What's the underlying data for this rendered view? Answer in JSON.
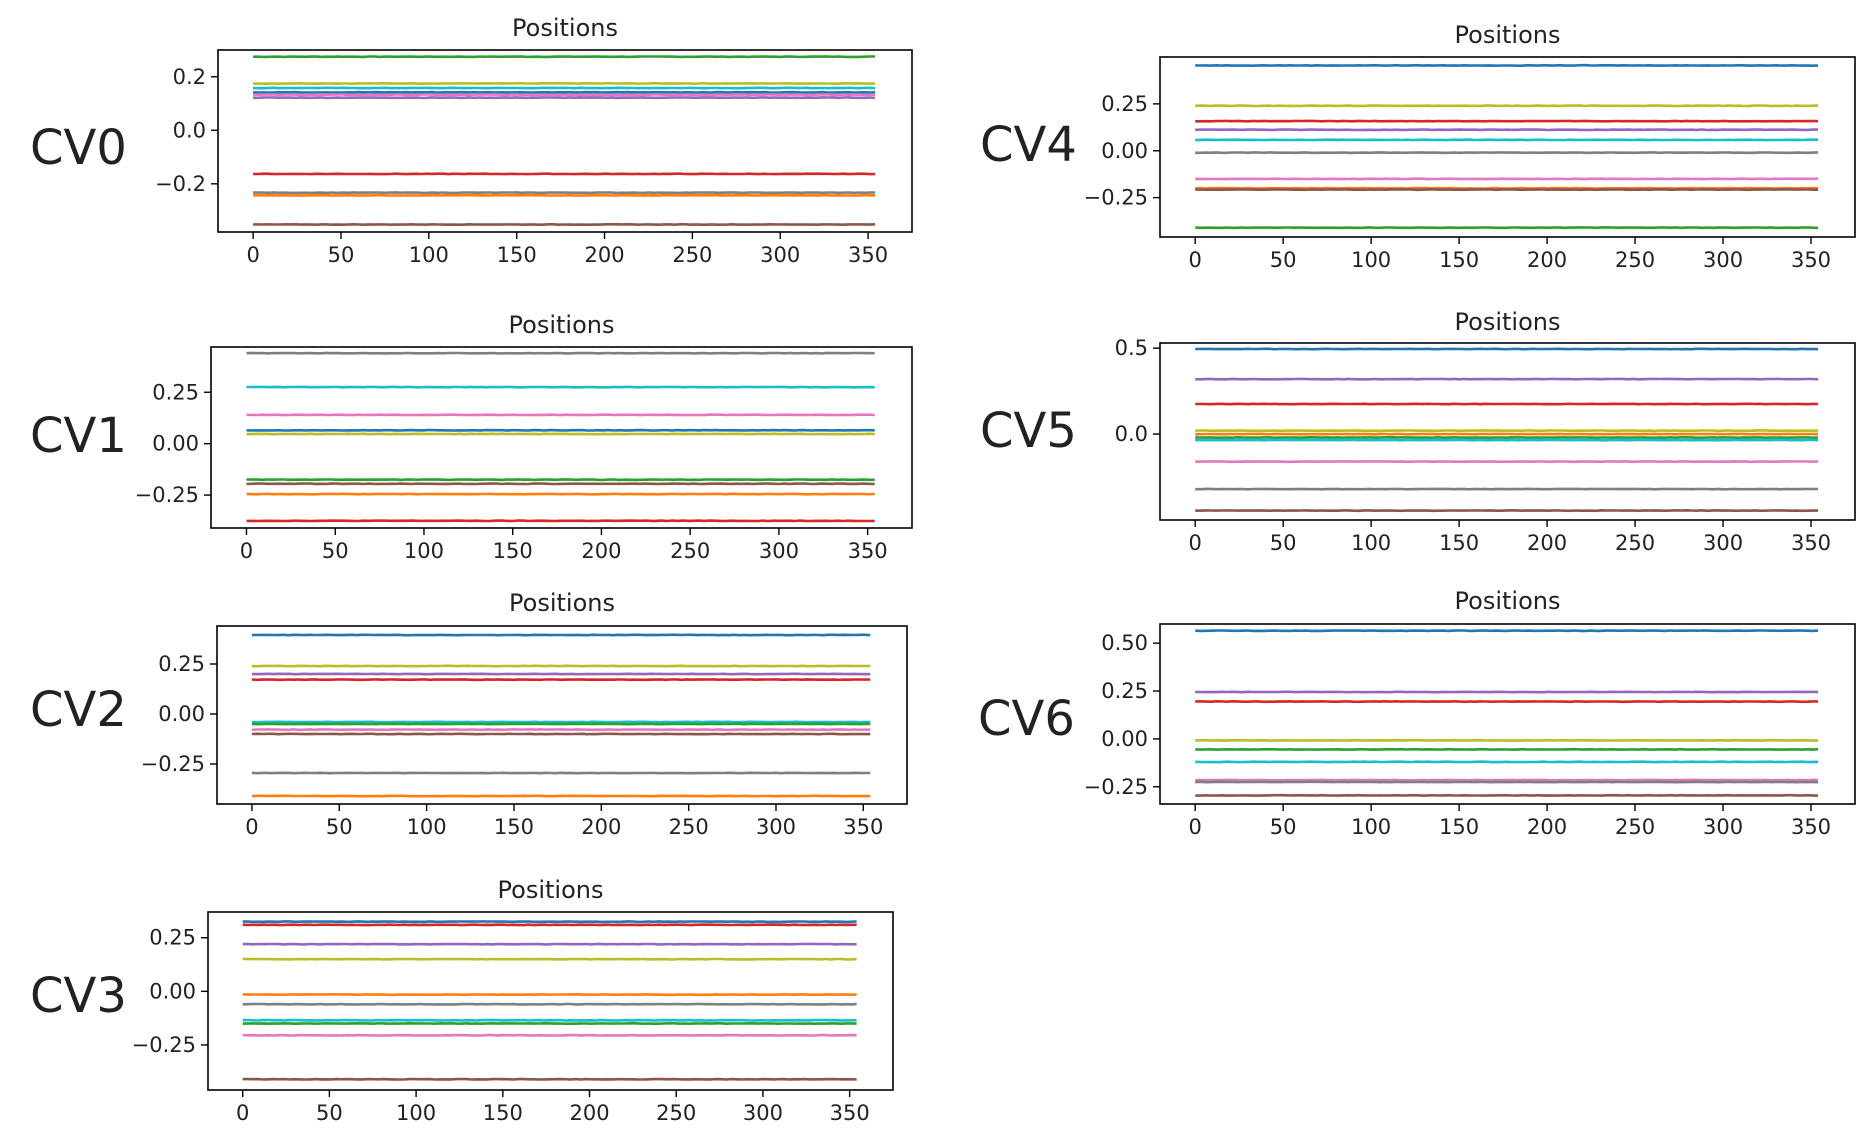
{
  "chart_data": [
    {
      "panel": "CV0",
      "type": "line",
      "title": "Positions",
      "xlim": [
        -20,
        375
      ],
      "ylim": [
        -0.38,
        0.3
      ],
      "xticks": [
        0,
        50,
        100,
        150,
        200,
        250,
        300,
        350
      ],
      "yticks": [
        {
          "v": 0.2,
          "t": "0.2"
        },
        {
          "v": 0.0,
          "t": "0.0"
        },
        {
          "v": -0.2,
          "t": "−0.2"
        }
      ],
      "xmax": 355,
      "series": [
        {
          "color": "#2ca02c",
          "y": 0.275
        },
        {
          "color": "#bcbd22",
          "y": 0.175
        },
        {
          "color": "#17becf",
          "y": 0.158
        },
        {
          "color": "#1f77b4",
          "y": 0.142
        },
        {
          "color": "#e377c2",
          "y": 0.133
        },
        {
          "color": "#9467bd",
          "y": 0.122
        },
        {
          "color": "#d62728",
          "y": -0.163
        },
        {
          "color": "#7f7f7f",
          "y": -0.233
        },
        {
          "color": "#ff7f0e",
          "y": -0.243
        },
        {
          "color": "#8c564b",
          "y": -0.352
        }
      ]
    },
    {
      "panel": "CV1",
      "type": "line",
      "title": "Positions",
      "xlim": [
        -20,
        375
      ],
      "ylim": [
        -0.41,
        0.47
      ],
      "xticks": [
        0,
        50,
        100,
        150,
        200,
        250,
        300,
        350
      ],
      "yticks": [
        {
          "v": 0.25,
          "t": "0.25"
        },
        {
          "v": 0.0,
          "t": "0.00"
        },
        {
          "v": -0.25,
          "t": "−0.25"
        }
      ],
      "xmax": 355,
      "series": [
        {
          "color": "#7f7f7f",
          "y": 0.44
        },
        {
          "color": "#17becf",
          "y": 0.275
        },
        {
          "color": "#e377c2",
          "y": 0.14
        },
        {
          "color": "#1f77b4",
          "y": 0.065
        },
        {
          "color": "#bcbd22",
          "y": 0.047
        },
        {
          "color": "#2ca02c",
          "y": -0.175
        },
        {
          "color": "#8c564b",
          "y": -0.195
        },
        {
          "color": "#ff7f0e",
          "y": -0.245
        },
        {
          "color": "#d62728",
          "y": -0.375
        }
      ]
    },
    {
      "panel": "CV2",
      "type": "line",
      "title": "Positions",
      "xlim": [
        -20,
        375
      ],
      "ylim": [
        -0.45,
        0.44
      ],
      "xticks": [
        0,
        50,
        100,
        150,
        200,
        250,
        300,
        350
      ],
      "yticks": [
        {
          "v": 0.25,
          "t": "0.25"
        },
        {
          "v": 0.0,
          "t": "0.00"
        },
        {
          "v": -0.25,
          "t": "−0.25"
        }
      ],
      "xmax": 355,
      "series": [
        {
          "color": "#1f77b4",
          "y": 0.395
        },
        {
          "color": "#bcbd22",
          "y": 0.24
        },
        {
          "color": "#9467bd",
          "y": 0.2
        },
        {
          "color": "#d62728",
          "y": 0.172
        },
        {
          "color": "#17becf",
          "y": -0.04
        },
        {
          "color": "#2ca02c",
          "y": -0.05
        },
        {
          "color": "#e377c2",
          "y": -0.078
        },
        {
          "color": "#8c564b",
          "y": -0.1
        },
        {
          "color": "#7f7f7f",
          "y": -0.295
        },
        {
          "color": "#ff7f0e",
          "y": -0.41
        }
      ]
    },
    {
      "panel": "CV3",
      "type": "line",
      "title": "Positions",
      "xlim": [
        -20,
        375
      ],
      "ylim": [
        -0.46,
        0.37
      ],
      "xticks": [
        0,
        50,
        100,
        150,
        200,
        250,
        300,
        350
      ],
      "yticks": [
        {
          "v": 0.25,
          "t": "0.25"
        },
        {
          "v": 0.0,
          "t": "0.00"
        },
        {
          "v": -0.25,
          "t": "−0.25"
        }
      ],
      "xmax": 355,
      "series": [
        {
          "color": "#1f77b4",
          "y": 0.325
        },
        {
          "color": "#d62728",
          "y": 0.31
        },
        {
          "color": "#9467bd",
          "y": 0.22
        },
        {
          "color": "#bcbd22",
          "y": 0.15
        },
        {
          "color": "#ff7f0e",
          "y": -0.015
        },
        {
          "color": "#7f7f7f",
          "y": -0.06
        },
        {
          "color": "#17becf",
          "y": -0.135
        },
        {
          "color": "#2ca02c",
          "y": -0.15
        },
        {
          "color": "#e377c2",
          "y": -0.205
        },
        {
          "color": "#8c564b",
          "y": -0.41
        }
      ]
    },
    {
      "panel": "CV4",
      "type": "line",
      "title": "Positions",
      "xlim": [
        -20,
        375
      ],
      "ylim": [
        -0.46,
        0.5
      ],
      "xticks": [
        0,
        50,
        100,
        150,
        200,
        250,
        300,
        350
      ],
      "yticks": [
        {
          "v": 0.25,
          "t": "0.25"
        },
        {
          "v": 0.0,
          "t": "0.00"
        },
        {
          "v": -0.25,
          "t": "−0.25"
        }
      ],
      "xmax": 355,
      "series": [
        {
          "color": "#1f77b4",
          "y": 0.455
        },
        {
          "color": "#bcbd22",
          "y": 0.24
        },
        {
          "color": "#d62728",
          "y": 0.158
        },
        {
          "color": "#9467bd",
          "y": 0.112
        },
        {
          "color": "#17becf",
          "y": 0.058
        },
        {
          "color": "#7f7f7f",
          "y": -0.01
        },
        {
          "color": "#e377c2",
          "y": -0.15
        },
        {
          "color": "#ff7f0e",
          "y": -0.2
        },
        {
          "color": "#8c564b",
          "y": -0.207
        },
        {
          "color": "#2ca02c",
          "y": -0.41
        }
      ]
    },
    {
      "panel": "CV5",
      "type": "line",
      "title": "Positions",
      "xlim": [
        -20,
        375
      ],
      "ylim": [
        -0.5,
        0.53
      ],
      "xticks": [
        0,
        50,
        100,
        150,
        200,
        250,
        300,
        350
      ],
      "yticks": [
        {
          "v": 0.5,
          "t": "0.5"
        },
        {
          "v": 0.0,
          "t": "0.0"
        }
      ],
      "xmax": 355,
      "series": [
        {
          "color": "#1f77b4",
          "y": 0.495
        },
        {
          "color": "#9467bd",
          "y": 0.32
        },
        {
          "color": "#d62728",
          "y": 0.175
        },
        {
          "color": "#bcbd22",
          "y": 0.02
        },
        {
          "color": "#ff7f0e",
          "y": 0.0
        },
        {
          "color": "#2ca02c",
          "y": -0.02
        },
        {
          "color": "#17becf",
          "y": -0.035
        },
        {
          "color": "#e377c2",
          "y": -0.16
        },
        {
          "color": "#7f7f7f",
          "y": -0.32
        },
        {
          "color": "#8c564b",
          "y": -0.445
        }
      ]
    },
    {
      "panel": "CV6",
      "type": "line",
      "title": "Positions",
      "xlim": [
        -20,
        375
      ],
      "ylim": [
        -0.34,
        0.6
      ],
      "xticks": [
        0,
        50,
        100,
        150,
        200,
        250,
        300,
        350
      ],
      "yticks": [
        {
          "v": 0.5,
          "t": "0.50"
        },
        {
          "v": 0.25,
          "t": "0.25"
        },
        {
          "v": 0.0,
          "t": "0.00"
        },
        {
          "v": -0.25,
          "t": "−0.25"
        }
      ],
      "xmax": 355,
      "series": [
        {
          "color": "#1f77b4",
          "y": 0.565
        },
        {
          "color": "#9467bd",
          "y": 0.245
        },
        {
          "color": "#d62728",
          "y": 0.195
        },
        {
          "color": "#bcbd22",
          "y": -0.008
        },
        {
          "color": "#2ca02c",
          "y": -0.055
        },
        {
          "color": "#17becf",
          "y": -0.12
        },
        {
          "color": "#e377c2",
          "y": -0.215
        },
        {
          "color": "#7f7f7f",
          "y": -0.225
        },
        {
          "color": "#8c564b",
          "y": -0.295
        }
      ]
    }
  ]
}
